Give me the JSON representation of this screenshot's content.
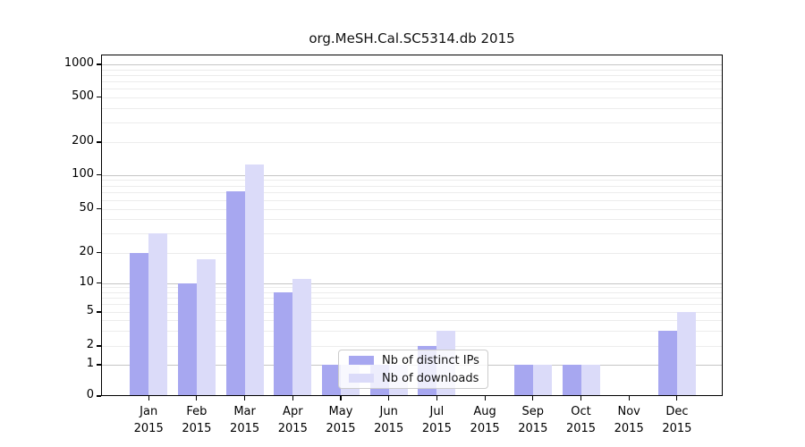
{
  "title": "org.MeSH.Cal.SC5314.db 2015",
  "chart_data": {
    "type": "bar",
    "title": "org.MeSH.Cal.SC5314.db 2015",
    "categories": [
      "Jan",
      "Feb",
      "Mar",
      "Apr",
      "May",
      "Jun",
      "Jul",
      "Aug",
      "Sep",
      "Oct",
      "Nov",
      "Dec"
    ],
    "category_year": "2015",
    "series": [
      {
        "name": "Nb of distinct IPs",
        "color": "#a7a7f0",
        "values": [
          20,
          10,
          72,
          8,
          1,
          1,
          2,
          0,
          1,
          1,
          0,
          3
        ]
      },
      {
        "name": "Nb of downloads",
        "color": "#dbdbf9",
        "values": [
          30,
          17,
          125,
          11,
          1,
          1,
          3,
          0,
          1,
          1,
          0,
          5
        ]
      }
    ],
    "xlabel": "",
    "ylabel": "",
    "yticks": [
      0,
      1,
      2,
      5,
      10,
      20,
      50,
      100,
      200,
      500,
      1000
    ],
    "minor_grid_values": [
      2,
      3,
      4,
      5,
      6,
      7,
      8,
      9,
      20,
      30,
      40,
      50,
      60,
      70,
      80,
      90,
      200,
      300,
      400,
      500,
      600,
      700,
      800,
      900
    ],
    "major_grid_values": [
      1,
      10,
      100,
      1000
    ],
    "ylim": [
      0,
      1000
    ],
    "scale": "log-above-1-linear-below",
    "grid": true,
    "legend_position": "lower center"
  },
  "legend": {
    "items": [
      {
        "label": "Nb of distinct IPs",
        "color": "#a7a7f0"
      },
      {
        "label": "Nb of downloads",
        "color": "#dbdbf9"
      }
    ]
  }
}
